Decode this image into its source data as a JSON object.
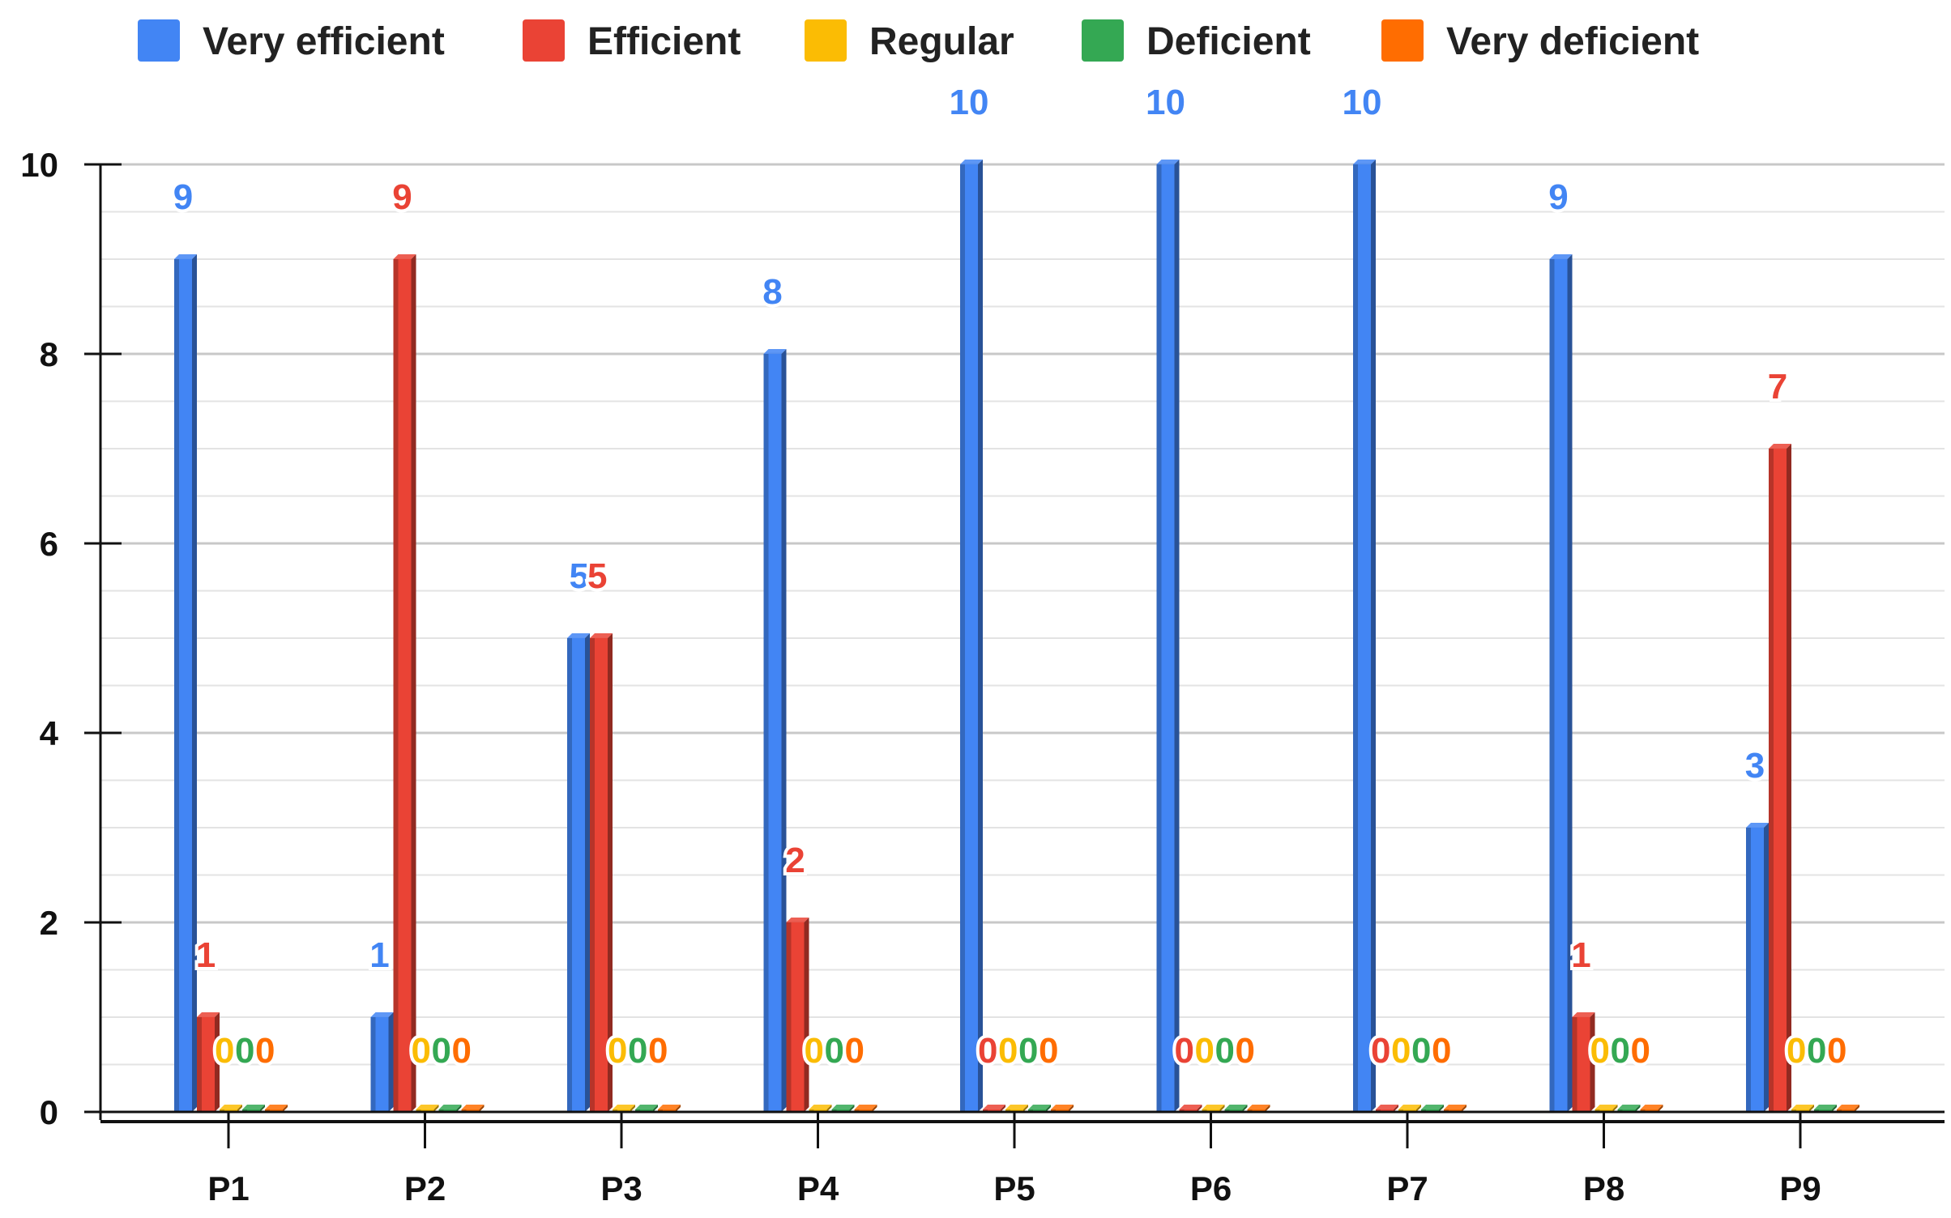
{
  "chart_data": {
    "type": "bar",
    "title": "",
    "xlabel": "",
    "ylabel": "",
    "ylim": [
      0,
      10
    ],
    "yticks": [
      "0",
      "2",
      "4",
      "6",
      "8",
      "10"
    ],
    "grid": true,
    "legend_position": "top",
    "categories": [
      "P1",
      "P2",
      "P3",
      "P4",
      "P5",
      "P6",
      "P7",
      "P8",
      "P9"
    ],
    "series": [
      {
        "name": "Very efficient",
        "color": "#4285F4",
        "values": [
          9,
          1,
          5,
          8,
          10,
          10,
          10,
          9,
          3
        ]
      },
      {
        "name": "Efficient",
        "color": "#EA4335",
        "values": [
          1,
          9,
          5,
          2,
          0,
          0,
          0,
          1,
          7
        ]
      },
      {
        "name": "Regular",
        "color": "#FBBC04",
        "values": [
          0,
          0,
          0,
          0,
          0,
          0,
          0,
          0,
          0
        ]
      },
      {
        "name": "Deficient",
        "color": "#34A853",
        "values": [
          0,
          0,
          0,
          0,
          0,
          0,
          0,
          0,
          0
        ]
      },
      {
        "name": "Very deficient",
        "color": "#FF6D01",
        "values": [
          0,
          0,
          0,
          0,
          0,
          0,
          0,
          0,
          0
        ]
      }
    ]
  }
}
